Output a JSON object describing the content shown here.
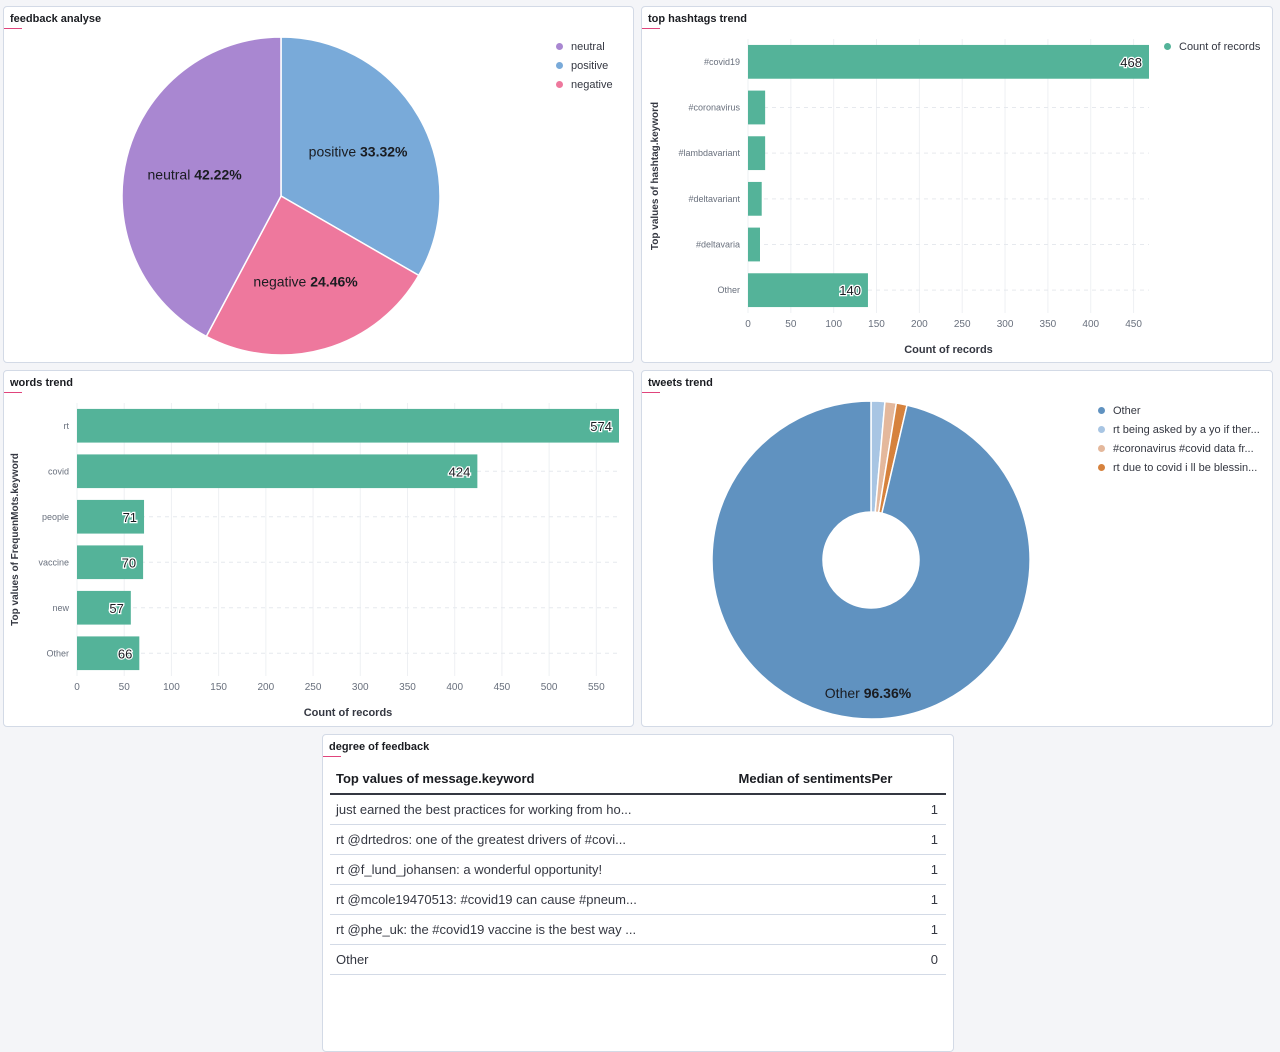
{
  "panels": {
    "feedback": {
      "title": "feedback analyse"
    },
    "hashtags": {
      "title": "top hashtags trend"
    },
    "words": {
      "title": "words trend"
    },
    "tweets": {
      "title": "tweets trend"
    },
    "degree": {
      "title": "degree of feedback"
    }
  },
  "chart_data": [
    {
      "id": "feedback",
      "type": "pie",
      "title": "feedback analyse",
      "slices": [
        {
          "label": "positive",
          "value": 33.32,
          "color": "#79aad9"
        },
        {
          "label": "negative",
          "value": 24.46,
          "color": "#ee789d"
        },
        {
          "label": "neutral",
          "value": 42.22,
          "color": "#a987d1"
        }
      ],
      "legend": [
        "neutral",
        "positive",
        "negative"
      ],
      "legend_position": "top-right"
    },
    {
      "id": "hashtags",
      "type": "bar",
      "orientation": "horizontal",
      "title": "top hashtags trend",
      "categories": [
        "#covid19",
        "#coronavirus",
        "#lambdavariant",
        "#deltavariant",
        "#deltavaria",
        "Other"
      ],
      "values": [
        468,
        20,
        20,
        16,
        14,
        140
      ],
      "data_labels": [
        "468",
        "",
        "",
        "",
        "",
        "140"
      ],
      "xlabel": "Count of records",
      "ylabel": "Top values of hashtag.keyword",
      "xlim": [
        0,
        468
      ],
      "xticks": [
        0,
        50,
        100,
        150,
        200,
        250,
        300,
        350,
        400,
        450
      ],
      "series_name": "Count of records",
      "color": "#54b399",
      "grid": true,
      "legend_position": "top-right"
    },
    {
      "id": "words",
      "type": "bar",
      "orientation": "horizontal",
      "title": "words trend",
      "categories": [
        "rt",
        "covid",
        "people",
        "vaccine",
        "new",
        "Other"
      ],
      "values": [
        574,
        424,
        71,
        70,
        57,
        66
      ],
      "xlabel": "Count of records",
      "ylabel": "Top values of FrequenMots.keyword",
      "xlim": [
        0,
        574
      ],
      "xticks": [
        0,
        50,
        100,
        150,
        200,
        250,
        300,
        350,
        400,
        450,
        500,
        550
      ],
      "color": "#54b399",
      "grid": true
    },
    {
      "id": "tweets",
      "type": "pie",
      "donut": true,
      "title": "tweets trend",
      "slices": [
        {
          "label": "rt being asked by a yo if ther...",
          "value": 1.4,
          "color": "#a8c5e3"
        },
        {
          "label": "#coronavirus #covid data fr...",
          "value": 1.15,
          "color": "#e4b89c"
        },
        {
          "label": "rt due to covid i ll be blessin...",
          "value": 1.09,
          "color": "#d6823d"
        },
        {
          "label": "Other",
          "value": 96.36,
          "color": "#6092c0"
        }
      ],
      "legend": [
        "Other",
        "rt being asked by a yo if ther...",
        "#coronavirus #covid data fr...",
        "rt due to covid i ll be blessin..."
      ],
      "legend_colors": [
        "#6092c0",
        "#a8c5e3",
        "#e4b89c",
        "#d6823d"
      ],
      "visible_label": {
        "label": "Other",
        "value": "96.36%"
      },
      "legend_position": "top-right"
    },
    {
      "id": "degree",
      "type": "table",
      "title": "degree of feedback",
      "columns": [
        "Top values of message.keyword",
        "Median of sentimentsPer"
      ],
      "rows": [
        [
          "just earned the best practices for working from ho...",
          "1"
        ],
        [
          "rt @drtedros: one of the greatest drivers of #covi...",
          "1"
        ],
        [
          "rt @f_lund_johansen: a wonderful opportunity!",
          "1"
        ],
        [
          "rt @mcole19470513: #covid19 can cause #pneum...",
          "1"
        ],
        [
          "rt @phe_uk: the #covid19 vaccine is the best way ...",
          "1"
        ],
        [
          "Other",
          "0"
        ]
      ]
    }
  ]
}
